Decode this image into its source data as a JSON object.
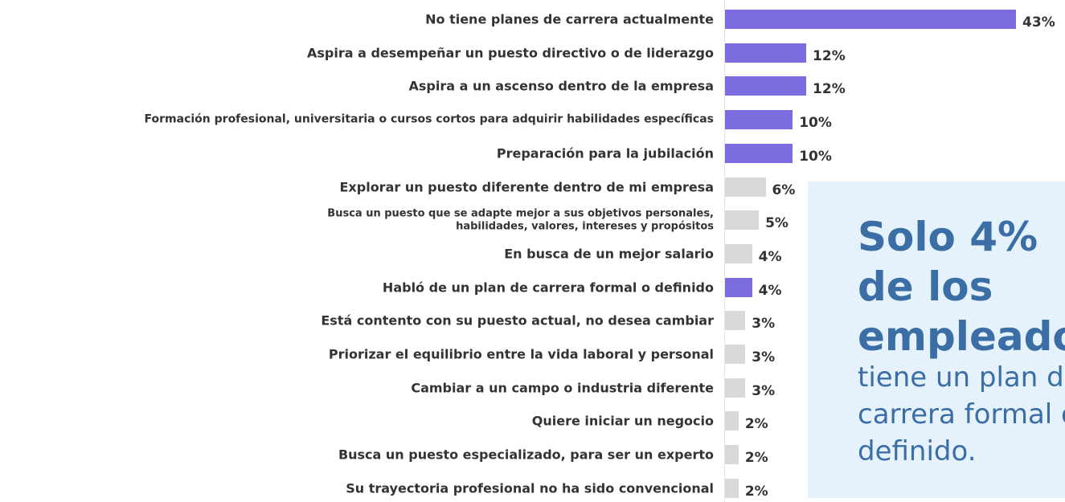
{
  "chart_data": {
    "type": "bar",
    "orientation": "horizontal",
    "categories": [
      "No tiene planes de carrera actualmente",
      "Aspira a desempeñar un puesto directivo o de liderazgo",
      "Aspira a un ascenso dentro de la empresa",
      "Formación profesional, universitaria o cursos cortos para adquirir habilidades específicas",
      "Preparación para la jubilación",
      "Explorar un puesto diferente dentro de mi empresa",
      "Busca un puesto que se adapte mejor a sus objetivos personales,\nhabilidades, valores, intereses y propósitos",
      "En busca de un mejor salario",
      "Habló de un plan de carrera formal o definido",
      "Está contento con su puesto actual, no desea cambiar",
      "Priorizar el equilibrio entre la vida laboral y personal",
      "Cambiar a un campo o industria diferente",
      "Quiere iniciar un negocio",
      "Busca un puesto especializado, para ser un experto",
      "Su trayectoria profesional no ha sido convencional"
    ],
    "values": [
      43,
      12,
      12,
      10,
      10,
      6,
      5,
      4,
      4,
      3,
      3,
      3,
      2,
      2,
      2
    ],
    "value_labels": [
      "43%",
      "12%",
      "12%",
      "10%",
      "10%",
      "6%",
      "5%",
      "4%",
      "4%",
      "3%",
      "3%",
      "3%",
      "2%",
      "2%",
      "2%"
    ],
    "colors": [
      "#7b6ce0",
      "#7b6ce0",
      "#7b6ce0",
      "#7b6ce0",
      "#7b6ce0",
      "#d9d9d9",
      "#d9d9d9",
      "#d9d9d9",
      "#7b6ce0",
      "#d9d9d9",
      "#d9d9d9",
      "#d9d9d9",
      "#d9d9d9",
      "#d9d9d9",
      "#d9d9d9"
    ],
    "annotation": {
      "heading": [
        "Solo 4%",
        "de los",
        "empleados"
      ],
      "text": [
        "tiene un plan de",
        "carrera formal o",
        "definido."
      ]
    }
  }
}
